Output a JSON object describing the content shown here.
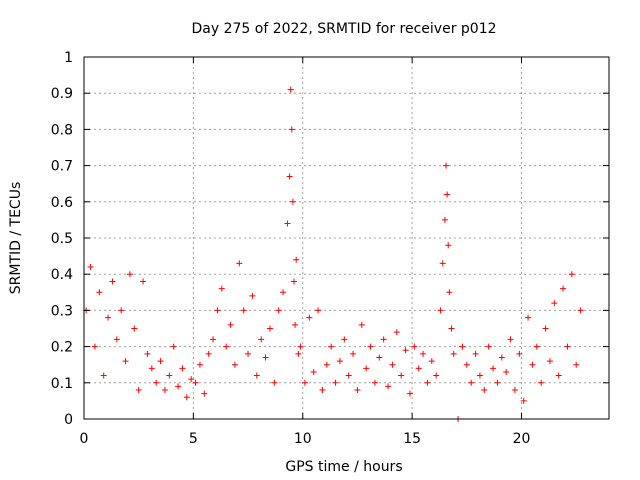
{
  "chart_data": {
    "type": "scatter",
    "title": "Day 275 of 2022, SRMTID for receiver p012",
    "xlabel": "GPS time / hours",
    "ylabel": "SRMTID / TECUs",
    "xlim": [
      0,
      24
    ],
    "ylim": [
      0,
      1
    ],
    "xticks": [
      "0",
      "5",
      "10",
      "15",
      "20"
    ],
    "xtick_values": [
      0,
      5,
      10,
      15,
      20
    ],
    "yticks": [
      "0",
      "0.1",
      "0.2",
      "0.3",
      "0.4",
      "0.5",
      "0.6",
      "0.7",
      "0.8",
      "0.9",
      "1"
    ],
    "ytick_values": [
      0,
      0.1,
      0.2,
      0.3,
      0.4,
      0.5,
      0.6,
      0.7,
      0.8,
      0.9,
      1
    ],
    "grid": true,
    "marker": "+",
    "series": [
      {
        "name": "SRMTID",
        "color": "#ff0000",
        "x": [
          0.1,
          0.3,
          0.5,
          0.7,
          0.9,
          1.1,
          1.3,
          1.5,
          1.7,
          1.9,
          2.1,
          2.3,
          2.5,
          2.7,
          2.9,
          3.1,
          3.3,
          3.5,
          3.7,
          3.9,
          4.1,
          4.3,
          4.5,
          4.7,
          4.9,
          5.1,
          5.3,
          5.5,
          5.7,
          5.9,
          6.1,
          6.3,
          6.5,
          6.7,
          6.9,
          7.1,
          7.3,
          7.5,
          7.7,
          7.9,
          8.1,
          8.3,
          8.5,
          8.7,
          8.9,
          9.1,
          9.3,
          9.4,
          9.45,
          9.5,
          9.55,
          9.6,
          9.65,
          9.7,
          9.8,
          9.9,
          10.1,
          10.3,
          10.5,
          10.7,
          10.9,
          11.1,
          11.3,
          11.5,
          11.7,
          11.9,
          12.1,
          12.3,
          12.5,
          12.7,
          12.9,
          13.1,
          13.3,
          13.5,
          13.7,
          13.9,
          14.1,
          14.3,
          14.5,
          14.7,
          14.9,
          15.1,
          15.3,
          15.5,
          15.7,
          15.9,
          16.1,
          16.3,
          16.4,
          16.5,
          16.55,
          16.6,
          16.65,
          16.7,
          16.8,
          16.9,
          17.1,
          17.3,
          17.5,
          17.7,
          17.9,
          18.1,
          18.3,
          18.5,
          18.7,
          18.9,
          19.1,
          19.3,
          19.5,
          19.7,
          19.9,
          20.1,
          20.3,
          20.5,
          20.7,
          20.9,
          21.1,
          21.3,
          21.5,
          21.7,
          21.9,
          22.1,
          22.3,
          22.5,
          22.7
        ],
        "y": [
          0.3,
          0.42,
          0.2,
          0.35,
          0.12,
          0.28,
          0.38,
          0.22,
          0.3,
          0.16,
          0.4,
          0.25,
          0.08,
          0.38,
          0.18,
          0.14,
          0.1,
          0.16,
          0.08,
          0.12,
          0.2,
          0.09,
          0.14,
          0.06,
          0.11,
          0.1,
          0.15,
          0.07,
          0.18,
          0.22,
          0.3,
          0.36,
          0.2,
          0.26,
          0.15,
          0.43,
          0.3,
          0.18,
          0.34,
          0.12,
          0.22,
          0.17,
          0.25,
          0.1,
          0.3,
          0.35,
          0.54,
          0.67,
          0.91,
          0.8,
          0.6,
          0.38,
          0.26,
          0.44,
          0.18,
          0.2,
          0.1,
          0.28,
          0.13,
          0.3,
          0.08,
          0.15,
          0.2,
          0.1,
          0.16,
          0.22,
          0.12,
          0.18,
          0.08,
          0.26,
          0.14,
          0.2,
          0.1,
          0.17,
          0.22,
          0.09,
          0.15,
          0.24,
          0.12,
          0.19,
          0.07,
          0.2,
          0.14,
          0.18,
          0.1,
          0.16,
          0.12,
          0.3,
          0.43,
          0.55,
          0.7,
          0.62,
          0.48,
          0.35,
          0.25,
          0.18,
          0.0,
          0.2,
          0.15,
          0.1,
          0.18,
          0.12,
          0.08,
          0.2,
          0.14,
          0.1,
          0.17,
          0.13,
          0.22,
          0.08,
          0.18,
          0.05,
          0.28,
          0.15,
          0.2,
          0.1,
          0.25,
          0.16,
          0.32,
          0.12,
          0.36,
          0.2,
          0.4,
          0.15,
          0.3
        ]
      }
    ]
  }
}
